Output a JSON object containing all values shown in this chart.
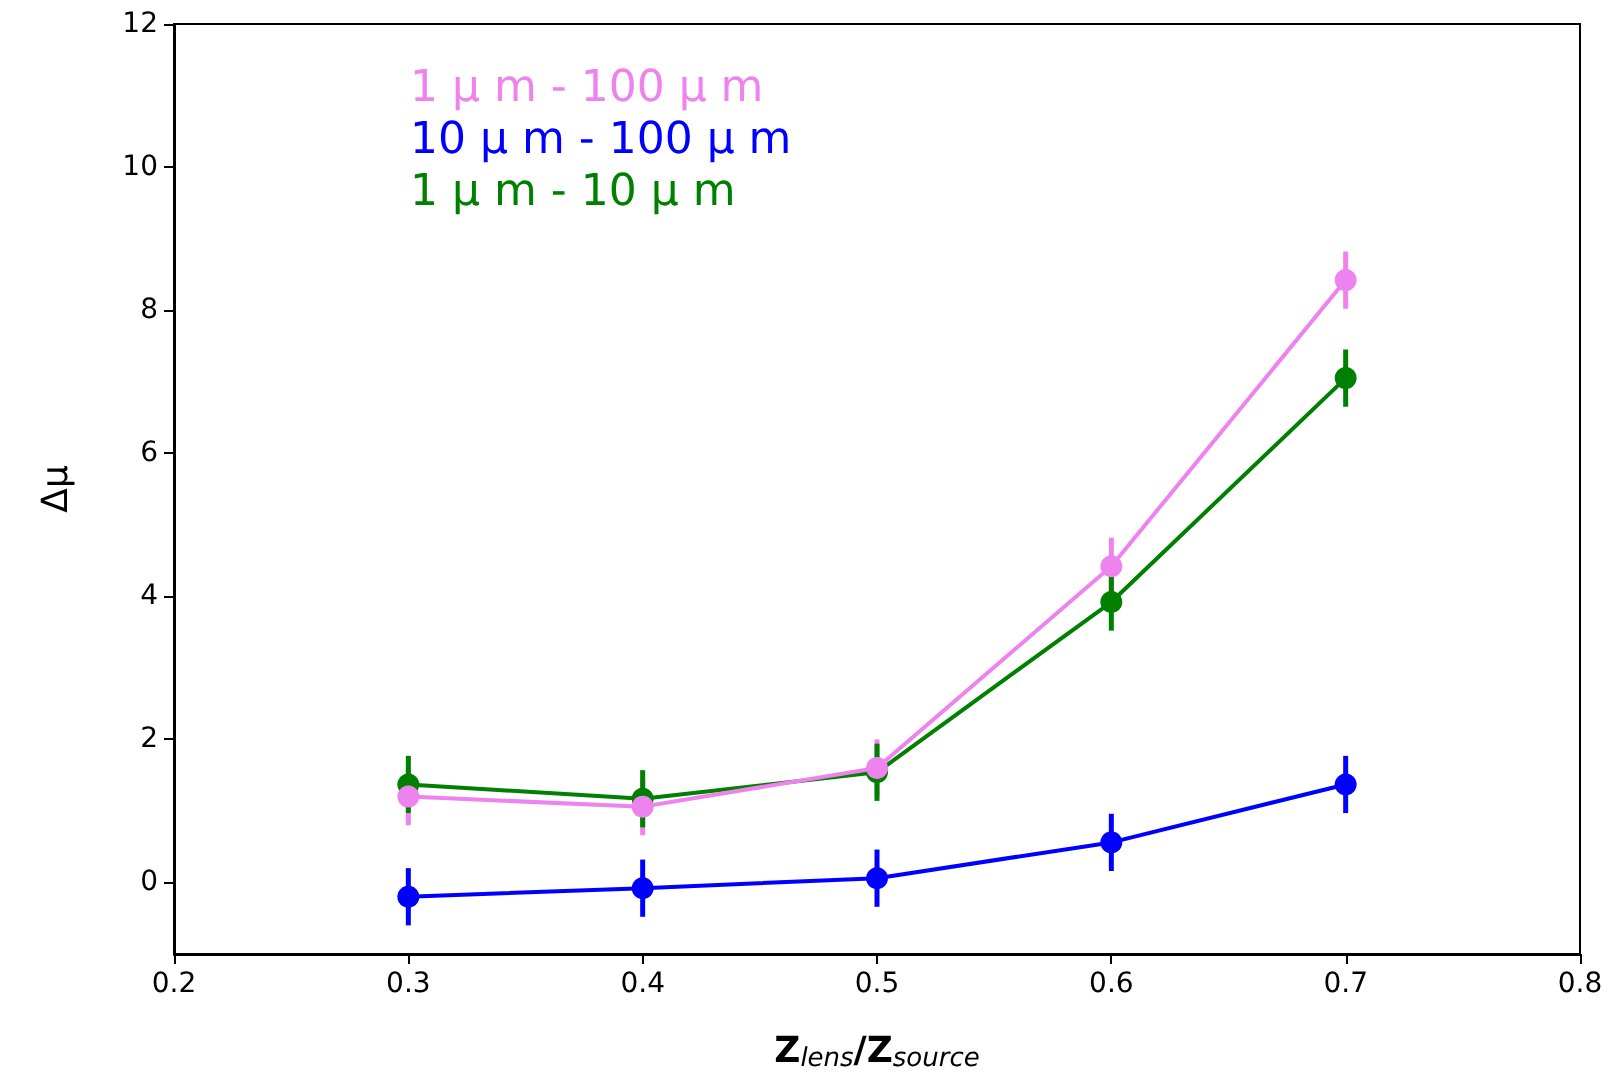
{
  "chart_data": {
    "type": "line",
    "xlabel": "Z$_{lens}$/Z$_{source}$",
    "ylabel": "Δμ",
    "x": [
      0.3,
      0.4,
      0.5,
      0.6,
      0.7
    ],
    "series": [
      {
        "name": "1 μ m - 100 μ m",
        "color": "#ee82ee",
        "values": [
          1.2,
          1.06,
          1.6,
          4.42,
          8.42
        ],
        "errors": [
          0.4,
          0.4,
          0.4,
          0.4,
          0.4
        ]
      },
      {
        "name": "10 μ m - 100 μ m",
        "color": "#0000ff",
        "values": [
          -0.2,
          -0.08,
          0.06,
          0.56,
          1.37
        ],
        "errors": [
          0.4,
          0.4,
          0.4,
          0.4,
          0.4
        ]
      },
      {
        "name": "1 μ m - 10 μ m",
        "color": "#008000",
        "values": [
          1.37,
          1.17,
          1.54,
          3.92,
          7.05
        ],
        "errors": [
          0.4,
          0.4,
          0.4,
          0.4,
          0.4
        ]
      }
    ],
    "xlim": [
      0.2,
      0.8
    ],
    "xticks": [
      0.2,
      0.3,
      0.4,
      0.5,
      0.6,
      0.7,
      0.8
    ],
    "ylim": [
      -1,
      12
    ],
    "yticks": [
      0,
      2,
      4,
      6,
      8,
      10,
      12
    ],
    "grid": false,
    "legend": "top left",
    "marker": "circle",
    "line_style": "solid"
  }
}
